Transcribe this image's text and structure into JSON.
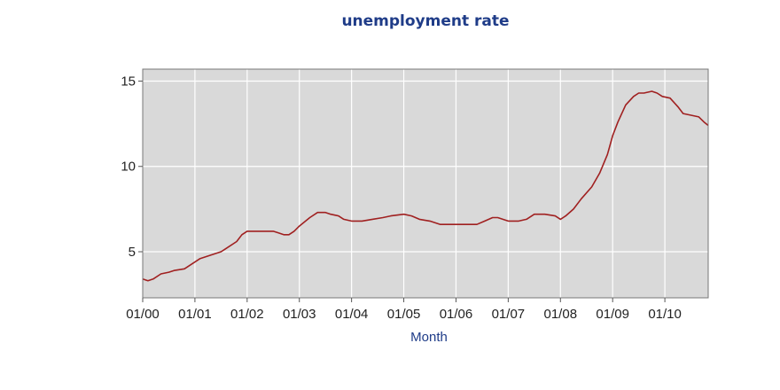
{
  "chart_data": {
    "type": "line",
    "title": "unemployment rate",
    "xlabel": "Month",
    "ylabel": "",
    "xlim": [
      2000.0,
      2010.83
    ],
    "ylim": [
      2.3,
      15.7
    ],
    "grid": true,
    "x_ticks": [
      {
        "value": 2000,
        "label": "01/00"
      },
      {
        "value": 2001,
        "label": "01/01"
      },
      {
        "value": 2002,
        "label": "01/02"
      },
      {
        "value": 2003,
        "label": "01/03"
      },
      {
        "value": 2004,
        "label": "01/04"
      },
      {
        "value": 2005,
        "label": "01/05"
      },
      {
        "value": 2006,
        "label": "01/06"
      },
      {
        "value": 2007,
        "label": "01/07"
      },
      {
        "value": 2008,
        "label": "01/08"
      },
      {
        "value": 2009,
        "label": "01/09"
      },
      {
        "value": 2010,
        "label": "01/10"
      }
    ],
    "y_ticks": [
      {
        "value": 5,
        "label": "5"
      },
      {
        "value": 10,
        "label": "10"
      },
      {
        "value": 15,
        "label": "15"
      }
    ],
    "colors": {
      "line": "#a02020",
      "plot_bg": "#d9d9d9",
      "grid": "#ffffff",
      "title": "#1f3c88"
    },
    "series": [
      {
        "x": [
          2000.0,
          2000.1,
          2000.2,
          2000.35,
          2000.5,
          2000.6,
          2000.8,
          2000.9,
          2001.0,
          2001.1,
          2001.3,
          2001.5,
          2001.6,
          2001.8,
          2001.9,
          2002.0,
          2002.2,
          2002.4,
          2002.5,
          2002.6,
          2002.7,
          2002.8,
          2002.9,
          2003.0,
          2003.2,
          2003.35,
          2003.5,
          2003.6,
          2003.75,
          2003.85,
          2004.0,
          2004.2,
          2004.4,
          2004.6,
          2004.75,
          2005.0,
          2005.15,
          2005.3,
          2005.5,
          2005.7,
          2005.9,
          2006.1,
          2006.2,
          2006.4,
          2006.55,
          2006.7,
          2006.8,
          2007.0,
          2007.2,
          2007.35,
          2007.5,
          2007.7,
          2007.9,
          2008.0,
          2008.1,
          2008.25,
          2008.4,
          2008.6,
          2008.75,
          2008.9,
          2009.0,
          2009.1,
          2009.25,
          2009.4,
          2009.5,
          2009.6,
          2009.75,
          2009.85,
          2009.95,
          2010.1,
          2010.25,
          2010.35,
          2010.5,
          2010.65,
          2010.75,
          2010.83
        ],
        "y": [
          3.4,
          3.3,
          3.4,
          3.7,
          3.8,
          3.9,
          4.0,
          4.2,
          4.4,
          4.6,
          4.8,
          5.0,
          5.2,
          5.6,
          6.0,
          6.2,
          6.2,
          6.2,
          6.2,
          6.1,
          6.0,
          6.0,
          6.2,
          6.5,
          7.0,
          7.3,
          7.3,
          7.2,
          7.1,
          6.9,
          6.8,
          6.8,
          6.9,
          7.0,
          7.1,
          7.2,
          7.1,
          6.9,
          6.8,
          6.6,
          6.6,
          6.6,
          6.6,
          6.6,
          6.8,
          7.0,
          7.0,
          6.8,
          6.8,
          6.9,
          7.2,
          7.2,
          7.1,
          6.9,
          7.1,
          7.5,
          8.1,
          8.8,
          9.6,
          10.7,
          11.8,
          12.6,
          13.6,
          14.1,
          14.3,
          14.3,
          14.4,
          14.3,
          14.1,
          14.0,
          13.5,
          13.1,
          13.0,
          12.9,
          12.6,
          12.4
        ]
      }
    ]
  }
}
